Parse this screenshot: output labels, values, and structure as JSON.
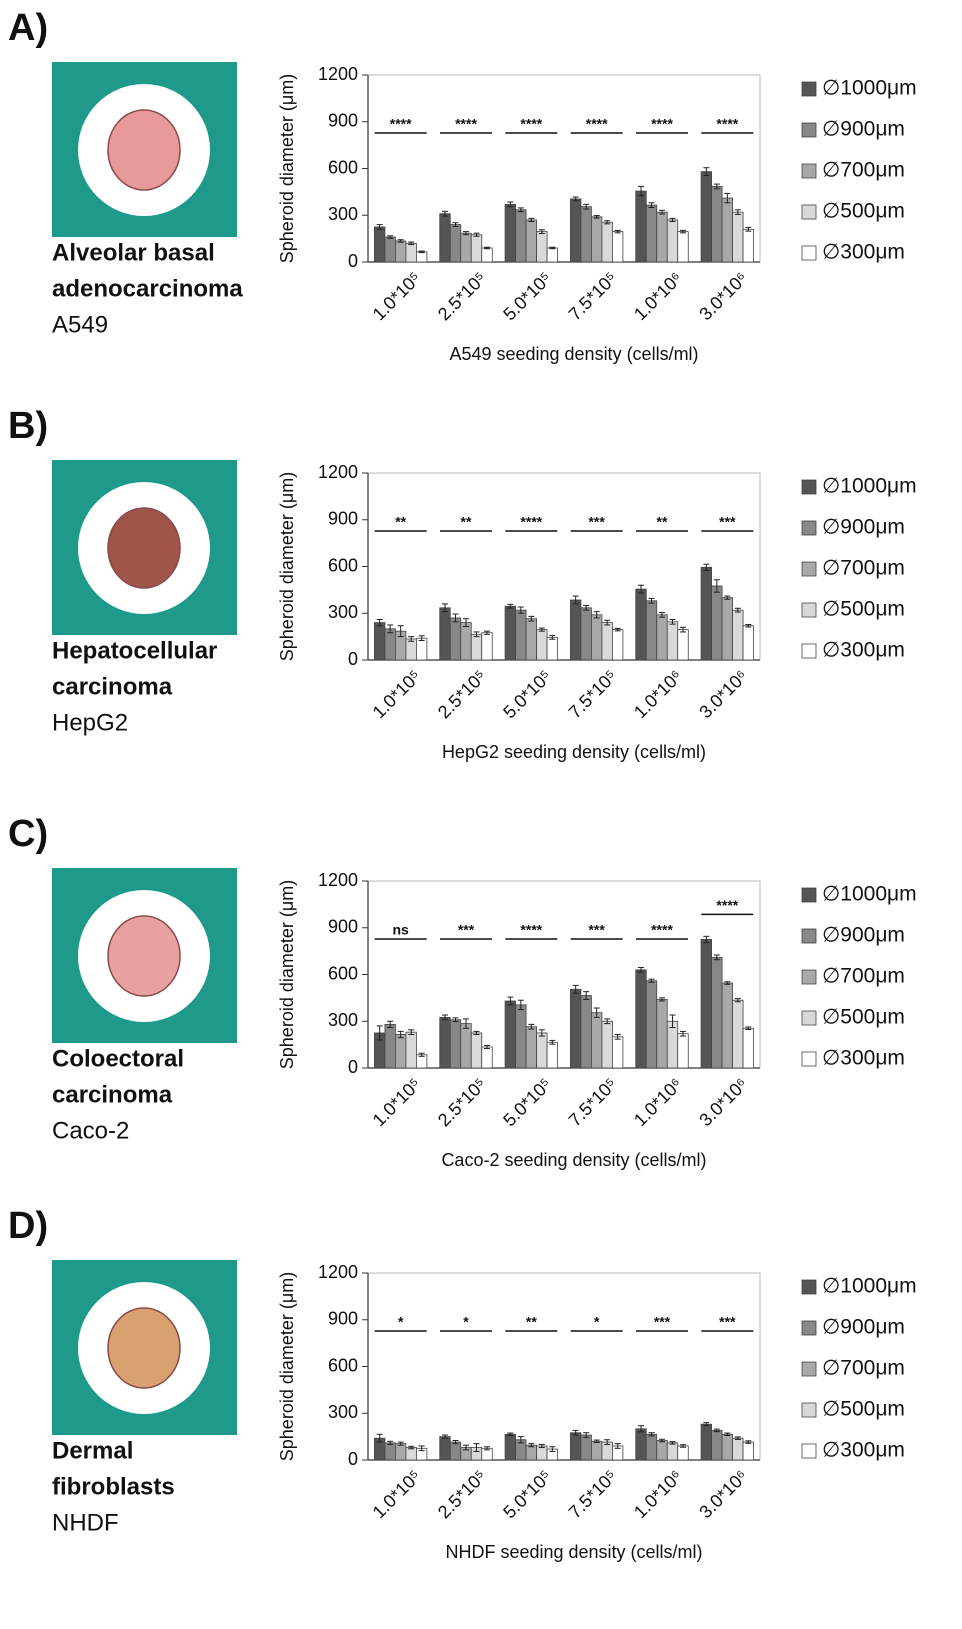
{
  "chart_data": [
    {
      "type": "bar",
      "panel_label": "A)",
      "cell_type_lines": [
        "Alveolar basal",
        "adenocarcinoma"
      ],
      "cell_line": "A549",
      "ylabel": "Spheroid diameter (μm)",
      "xlabel": "A549 seeding density (cells/ml)",
      "categories": [
        "1.0*10⁵",
        "2.5*10⁵",
        "5.0*10⁵",
        "7.5*10⁵",
        "1.0*10⁶",
        "3.0*10⁶"
      ],
      "series": [
        {
          "name": "∅1000μm",
          "color": "#555555",
          "values": [
            225,
            310,
            370,
            405,
            455,
            580
          ],
          "errors": [
            15,
            15,
            15,
            12,
            30,
            25
          ]
        },
        {
          "name": "∅900μm",
          "color": "#888888",
          "values": [
            160,
            240,
            335,
            355,
            365,
            485
          ],
          "errors": [
            8,
            12,
            12,
            15,
            15,
            15
          ]
        },
        {
          "name": "∅700μm",
          "color": "#a8a8a8",
          "values": [
            135,
            185,
            270,
            290,
            320,
            410
          ],
          "errors": [
            8,
            10,
            10,
            8,
            12,
            30
          ]
        },
        {
          "name": "∅500μm",
          "color": "#d9d9d9",
          "values": [
            120,
            175,
            195,
            255,
            270,
            320
          ],
          "errors": [
            8,
            10,
            12,
            10,
            10,
            15
          ]
        },
        {
          "name": "∅300μm",
          "color": "#ffffff",
          "values": [
            65,
            90,
            90,
            195,
            195,
            210
          ],
          "errors": [
            5,
            5,
            5,
            8,
            8,
            12
          ]
        }
      ],
      "annotations": [
        "****",
        "****",
        "****",
        "****",
        "****",
        "****"
      ],
      "ylim": [
        0,
        1200
      ],
      "yticks": [
        0,
        300,
        600,
        900,
        1200
      ],
      "legend": "right"
    },
    {
      "type": "bar",
      "panel_label": "B)",
      "cell_type_lines": [
        "Hepatocellular",
        "carcinoma"
      ],
      "cell_line": "HepG2",
      "ylabel": "Spheroid diameter (μm)",
      "xlabel": "HepG2 seeding density (cells/ml)",
      "categories": [
        "1.0*10⁵",
        "2.5*10⁵",
        "5.0*10⁵",
        "7.5*10⁵",
        "1.0*10⁶",
        "3.0*10⁶"
      ],
      "series": [
        {
          "name": "∅1000μm",
          "color": "#555555",
          "values": [
            240,
            335,
            345,
            385,
            455,
            595
          ],
          "errors": [
            20,
            25,
            12,
            25,
            25,
            20
          ]
        },
        {
          "name": "∅900μm",
          "color": "#888888",
          "values": [
            200,
            270,
            320,
            335,
            380,
            475
          ],
          "errors": [
            25,
            25,
            20,
            15,
            15,
            40
          ]
        },
        {
          "name": "∅700μm",
          "color": "#a8a8a8",
          "values": [
            185,
            240,
            265,
            290,
            290,
            400
          ],
          "errors": [
            35,
            25,
            15,
            20,
            15,
            10
          ]
        },
        {
          "name": "∅500μm",
          "color": "#d9d9d9",
          "values": [
            135,
            165,
            195,
            240,
            245,
            320
          ],
          "errors": [
            15,
            15,
            10,
            15,
            15,
            12
          ]
        },
        {
          "name": "∅300μm",
          "color": "#ffffff",
          "values": [
            140,
            175,
            145,
            195,
            195,
            220
          ],
          "errors": [
            15,
            10,
            12,
            8,
            15,
            8
          ]
        }
      ],
      "annotations": [
        "**",
        "**",
        "****",
        "***",
        "**",
        "***"
      ],
      "ylim": [
        0,
        1200
      ],
      "yticks": [
        0,
        300,
        600,
        900,
        1200
      ],
      "legend": "right"
    },
    {
      "type": "bar",
      "panel_label": "C)",
      "cell_type_lines": [
        "Coloectoral",
        "carcinoma"
      ],
      "cell_line": "Caco-2",
      "ylabel": "Spheroid diameter (μm)",
      "xlabel": "Caco-2 seeding density (cells/ml)",
      "categories": [
        "1.0*10⁵",
        "2.5*10⁵",
        "5.0*10⁵",
        "7.5*10⁵",
        "1.0*10⁶",
        "3.0*10⁶"
      ],
      "series": [
        {
          "name": "∅1000μm",
          "color": "#555555",
          "values": [
            225,
            325,
            430,
            505,
            630,
            825
          ],
          "errors": [
            45,
            15,
            25,
            25,
            15,
            20
          ]
        },
        {
          "name": "∅900μm",
          "color": "#888888",
          "values": [
            280,
            310,
            405,
            465,
            560,
            710
          ],
          "errors": [
            20,
            12,
            30,
            25,
            10,
            15
          ]
        },
        {
          "name": "∅700μm",
          "color": "#a8a8a8",
          "values": [
            215,
            285,
            265,
            355,
            440,
            545
          ],
          "errors": [
            20,
            30,
            15,
            30,
            10,
            8
          ]
        },
        {
          "name": "∅500μm",
          "color": "#d9d9d9",
          "values": [
            230,
            225,
            225,
            300,
            300,
            435
          ],
          "errors": [
            15,
            10,
            20,
            15,
            40,
            10
          ]
        },
        {
          "name": "∅300μm",
          "color": "#ffffff",
          "values": [
            85,
            135,
            165,
            200,
            220,
            255
          ],
          "errors": [
            10,
            10,
            12,
            15,
            15,
            8
          ]
        }
      ],
      "annotations": [
        "ns",
        "***",
        "****",
        "***",
        "****",
        "****"
      ],
      "ylim": [
        0,
        1200
      ],
      "yticks": [
        0,
        300,
        600,
        900,
        1200
      ],
      "legend": "right"
    },
    {
      "type": "bar",
      "panel_label": "D)",
      "cell_type_lines": [
        "Dermal",
        "fibroblasts"
      ],
      "cell_line": "NHDF",
      "ylabel": "Spheroid diameter (μm)",
      "xlabel": "NHDF seeding density (cells/ml)",
      "categories": [
        "1.0*10⁵",
        "2.5*10⁵",
        "5.0*10⁵",
        "7.5*10⁵",
        "1.0*10⁶",
        "3.0*10⁶"
      ],
      "series": [
        {
          "name": "∅1000μm",
          "color": "#555555",
          "values": [
            140,
            150,
            165,
            175,
            200,
            230
          ],
          "errors": [
            25,
            10,
            8,
            15,
            20,
            10
          ]
        },
        {
          "name": "∅900μm",
          "color": "#888888",
          "values": [
            110,
            115,
            130,
            160,
            165,
            190
          ],
          "errors": [
            10,
            10,
            20,
            15,
            10,
            8
          ]
        },
        {
          "name": "∅700μm",
          "color": "#a8a8a8",
          "values": [
            105,
            80,
            95,
            120,
            125,
            165
          ],
          "errors": [
            10,
            15,
            10,
            8,
            8,
            8
          ]
        },
        {
          "name": "∅500μm",
          "color": "#d9d9d9",
          "values": [
            80,
            80,
            90,
            115,
            110,
            140
          ],
          "errors": [
            8,
            25,
            10,
            15,
            8,
            8
          ]
        },
        {
          "name": "∅300μm",
          "color": "#ffffff",
          "values": [
            75,
            75,
            70,
            90,
            90,
            115
          ],
          "errors": [
            15,
            10,
            15,
            15,
            8,
            8
          ]
        }
      ],
      "annotations": [
        "*",
        "*",
        "**",
        "*",
        "***",
        "***"
      ],
      "ylim": [
        0,
        1200
      ],
      "yticks": [
        0,
        300,
        600,
        900,
        1200
      ],
      "legend": "right"
    }
  ]
}
